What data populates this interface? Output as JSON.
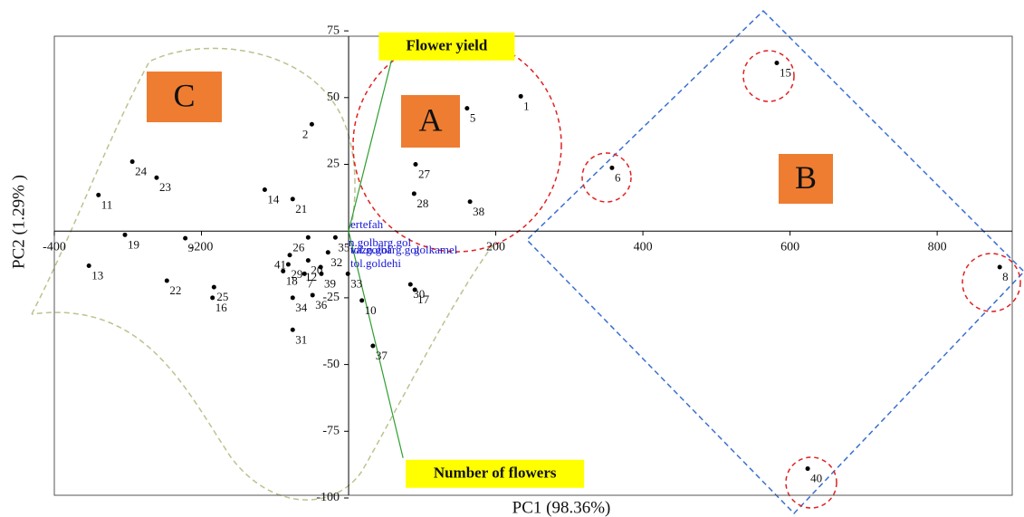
{
  "chart_data": {
    "type": "scatter",
    "x_label": "PC1 (98.36%)",
    "y_label": "PC2 (1.29% )",
    "xlim": [
      -400,
      902
    ],
    "ylim": [
      -100,
      73
    ],
    "xticks": [
      -400,
      -200,
      200,
      400,
      600,
      800
    ],
    "yticks": [
      75,
      50,
      25,
      -25,
      -50,
      -75,
      -100
    ],
    "point_color": "#000000",
    "point_labels": [
      "1",
      "5",
      "2",
      "15",
      "24",
      "23",
      "11",
      "14",
      "21",
      "27",
      "28",
      "38",
      "6",
      "19",
      "9",
      "13",
      "22",
      "25",
      "16",
      "41",
      "29",
      "20",
      "18",
      "7",
      "39",
      "26",
      "32",
      "35",
      "12",
      "33",
      "34",
      "36",
      "31",
      "10",
      "30",
      "17",
      "37",
      "8",
      "40"
    ],
    "x": [
      234,
      161,
      -50,
      582,
      -294,
      -261,
      -340,
      -114,
      -76,
      91,
      89,
      165,
      358,
      -304,
      -222,
      -353,
      -247,
      -183,
      -185,
      -80,
      -82,
      -55,
      -89,
      -60,
      -37,
      -55,
      -28,
      -18,
      -38,
      -1,
      -76,
      -49,
      -76,
      18,
      84,
      90,
      33,
      885,
      624
    ],
    "y": [
      50.5,
      46,
      40,
      63,
      26,
      20,
      13.5,
      15.5,
      12,
      25,
      14,
      11,
      23.7,
      -1.4,
      -2.7,
      -13,
      -18.6,
      -21,
      -25,
      -9,
      -12.5,
      -11,
      -15,
      -16,
      -16,
      -2.4,
      -8,
      -2.4,
      -13.5,
      -16,
      -25,
      -24,
      -37,
      -26,
      -20,
      -22,
      -43,
      -13.5,
      -89
    ],
    "vectors": [
      {
        "name": "Flower yield",
        "x": 62,
        "y": 68,
        "color": "#2e9e2e"
      },
      {
        "name": "Number of flowers",
        "x": 74,
        "y": -85,
        "color": "#2e9e2e"
      }
    ],
    "variables": [
      "ertefah",
      "n.golbarg.gol",
      "tol.golbarg.gol",
      "vazn.gol",
      "golkamel",
      "tol.goldehi"
    ],
    "groups": [
      "A",
      "B",
      "C"
    ]
  }
}
